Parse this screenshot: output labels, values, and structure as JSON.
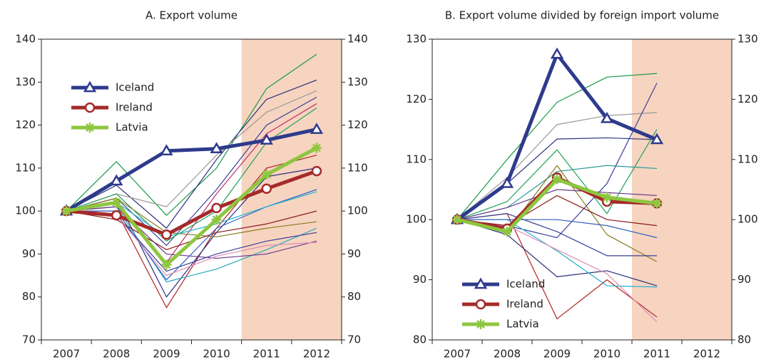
{
  "chart_data": [
    {
      "type": "line",
      "title": "A. Export volume",
      "categories": [
        "2007",
        "2008",
        "2009",
        "2010",
        "2011",
        "2012"
      ],
      "ylim": [
        70,
        140
      ],
      "yticks": [
        70,
        80,
        90,
        100,
        110,
        120,
        130,
        140
      ],
      "right_axis": true,
      "legend": "upper left",
      "highlight": {
        "from": "2011",
        "to": "2012",
        "color": "#f6d4c0"
      },
      "series": [
        {
          "color": "#1a9a4a",
          "values": [
            100,
            111.5,
            99,
            110,
            128.5,
            136.5
          ]
        },
        {
          "color": "#2b2f7a",
          "values": [
            100,
            106,
            96,
            112,
            126,
            130.5
          ]
        },
        {
          "color": "#999999",
          "values": [
            100,
            104,
            101,
            113,
            123,
            128
          ]
        },
        {
          "color": "#3a3f9a",
          "values": [
            100,
            103,
            92,
            105,
            120,
            126.5
          ]
        },
        {
          "color": "#c0306a",
          "values": [
            100,
            101,
            88,
            104,
            118,
            125
          ]
        },
        {
          "color": "#b22222",
          "values": [
            100,
            100,
            77.5,
            96,
            110,
            113
          ]
        },
        {
          "color": "#22a05a",
          "values": [
            100,
            104,
            93,
            100,
            116,
            124
          ]
        },
        {
          "color": "#2b2f7a",
          "values": [
            100,
            103,
            80,
            95,
            108,
            110
          ]
        },
        {
          "color": "#2aa8c0",
          "values": [
            100,
            101,
            83.5,
            86.5,
            91,
            96
          ]
        },
        {
          "color": "#3a3f9a",
          "values": [
            100,
            99,
            86,
            90,
            93,
            95
          ]
        },
        {
          "color": "#8a7a20",
          "values": [
            100,
            103,
            95,
            94,
            96,
            97.5
          ]
        },
        {
          "color": "#8b1a1a",
          "values": [
            100,
            98,
            91,
            95,
            97,
            100
          ]
        },
        {
          "color": "#3060c0",
          "values": [
            100,
            100,
            84,
            96,
            101,
            105
          ]
        },
        {
          "color": "#6a3a8a",
          "values": [
            100,
            101,
            90,
            89,
            90,
            93
          ]
        },
        {
          "color": "#20b0d0",
          "values": [
            100,
            102,
            94,
            97,
            101,
            104.5
          ]
        },
        {
          "color": "#e08bb0",
          "values": [
            100,
            99,
            85,
            89.5,
            92,
            92.7
          ]
        },
        {
          "name": "Iceland",
          "color": "#2e3a8c",
          "marker": "triangle",
          "width": 5,
          "values": [
            100,
            107,
            114,
            114.5,
            116.5,
            119
          ]
        },
        {
          "name": "Ireland",
          "color": "#a52a2a",
          "marker": "circle",
          "width": 5,
          "values": [
            100,
            99,
            94.5,
            100.7,
            105.2,
            109.3
          ]
        },
        {
          "name": "Latvia",
          "color": "#8dc63f",
          "marker": "asterisk",
          "width": 5,
          "values": [
            100,
            102,
            87.5,
            98,
            108.5,
            114.7
          ]
        }
      ]
    },
    {
      "type": "line",
      "title": "B. Export volume divided by foreign import volume",
      "categories": [
        "2007",
        "2008",
        "2009",
        "2010",
        "2011",
        "2012"
      ],
      "ylim": [
        80,
        130
      ],
      "yticks": [
        80,
        90,
        100,
        110,
        120,
        130
      ],
      "right_axis": true,
      "legend": "lower left",
      "highlight": {
        "from": "2011",
        "to": "2012",
        "color": "#f6d4c0"
      },
      "series": [
        {
          "color": "#1a9a4a",
          "values": [
            100,
            110,
            119.5,
            123.7,
            124.3,
            null
          ]
        },
        {
          "color": "#999999",
          "values": [
            100,
            107,
            115.8,
            117.3,
            117.8,
            null
          ]
        },
        {
          "color": "#2b2f7a",
          "values": [
            100,
            106,
            113.4,
            113.6,
            113.3,
            null
          ]
        },
        {
          "color": "#3a3f9a",
          "values": [
            100,
            99,
            97,
            106,
            122.7,
            null
          ]
        },
        {
          "color": "#22a05a",
          "values": [
            100,
            103,
            111.6,
            101,
            115,
            null
          ]
        },
        {
          "color": "#2a9a9a",
          "values": [
            100,
            102,
            108,
            109,
            108.5,
            null
          ]
        },
        {
          "color": "#b22222",
          "values": [
            100,
            101,
            83.5,
            90,
            83.8,
            null
          ]
        },
        {
          "color": "#2b2f7a",
          "values": [
            100,
            97.5,
            90.5,
            91.5,
            89,
            null
          ]
        },
        {
          "color": "#20b0d0",
          "values": [
            100,
            100,
            94.8,
            89,
            88.8,
            null
          ]
        },
        {
          "color": "#e08bb0",
          "values": [
            100,
            99,
            95,
            91,
            83,
            null
          ]
        },
        {
          "color": "#8a7a20",
          "values": [
            100,
            98,
            109,
            97.5,
            93,
            null
          ]
        },
        {
          "color": "#3a3f9a",
          "values": [
            100,
            101,
            98,
            94,
            94,
            null
          ]
        },
        {
          "color": "#6a3a8a",
          "values": [
            100,
            102,
            105,
            104.5,
            104,
            null
          ]
        },
        {
          "color": "#8b1a1a",
          "values": [
            100,
            99,
            104,
            100,
            99,
            null
          ]
        },
        {
          "color": "#3060c0",
          "values": [
            100,
            100,
            100,
            99,
            97,
            null
          ]
        },
        {
          "name": "Iceland",
          "color": "#2e3a8c",
          "marker": "triangle",
          "width": 5,
          "values": [
            100,
            106,
            127.5,
            116.8,
            113.3,
            null
          ]
        },
        {
          "name": "Ireland",
          "color": "#a52a2a",
          "marker": "circle",
          "width": 5,
          "values": [
            100,
            98.5,
            107,
            103,
            102.7,
            null
          ]
        },
        {
          "name": "Latvia",
          "color": "#8dc63f",
          "marker": "asterisk",
          "width": 5,
          "values": [
            100,
            98,
            106.7,
            103.7,
            102.7,
            null
          ]
        }
      ]
    }
  ]
}
